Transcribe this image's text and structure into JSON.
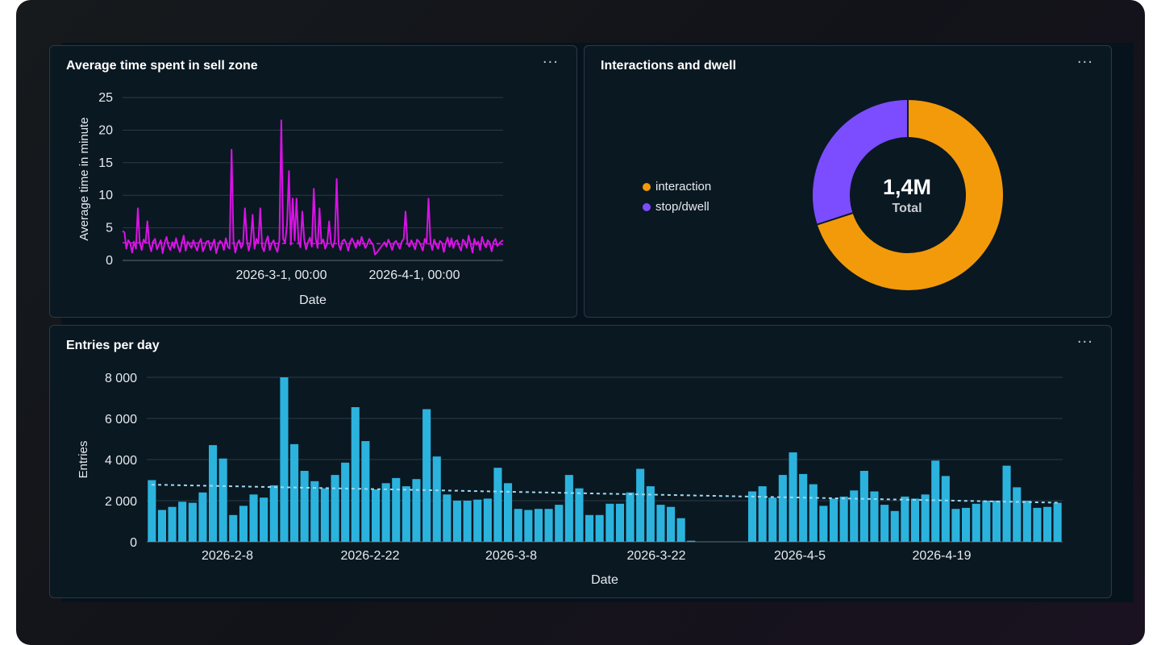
{
  "panels": {
    "sell_zone": {
      "title": "Average time spent in sell zone",
      "menu": "···"
    },
    "interactions": {
      "title": "Interactions and dwell",
      "menu": "···",
      "center_value": "1,4M",
      "center_label": "Total"
    },
    "entries": {
      "title": "Entries per day",
      "menu": "···"
    }
  },
  "colors": {
    "magenta": "#d912e6",
    "orange": "#f39a0a",
    "purple": "#7b4dff",
    "bar": "#2bb3de",
    "trend": "#9fd8ee"
  },
  "chart_data": [
    {
      "type": "line",
      "xlabel": "Date",
      "ylabel": "Average time in minute",
      "ylim": [
        0,
        25
      ],
      "yticks": [
        "0",
        "5",
        "10",
        "15",
        "20",
        "25"
      ],
      "xtick_labels": [
        "2026-3-1, 00:00",
        "2026-4-1, 00:00"
      ],
      "series": [
        {
          "values": [
            4.5,
            4.3,
            1.8,
            3.1,
            2.6,
            1.2,
            2.9,
            1.8,
            8.0,
            2.8,
            1.6,
            3.2,
            2.7,
            6.0,
            2.5,
            1.4,
            2.9,
            3.3,
            1.7,
            2.4,
            3.1,
            1.1,
            2.7,
            3.6,
            2.2,
            1.6,
            2.8,
            1.9,
            3.4,
            2.1,
            1.3,
            2.6,
            3.8,
            1.5,
            2.9,
            2.4,
            1.9,
            3.1,
            2.2,
            1.5,
            2.7,
            3.3,
            1.4,
            2.1,
            2.9,
            3.0,
            1.6,
            2.4,
            3.2,
            1.1,
            2.3,
            3.0,
            2.7,
            1.6,
            3.4,
            2.1,
            1.8,
            17.0,
            3.0,
            1.2,
            2.6,
            3.1,
            1.9,
            2.5,
            8.0,
            3.2,
            1.5,
            2.8,
            7.0,
            1.8,
            3.3,
            2.6,
            8.0,
            2.1,
            1.4,
            2.9,
            3.7,
            1.6,
            2.6,
            3.1,
            2.0,
            1.3,
            3.1,
            21.5,
            3.3,
            2.7,
            5.5,
            13.7,
            2.4,
            9.5,
            3.1,
            9.5,
            3.0,
            2.0,
            7.5,
            3.2,
            1.7,
            2.8,
            3.5,
            2.1,
            11.0,
            3.4,
            1.9,
            8.0,
            2.6,
            3.2,
            1.8,
            2.6,
            6.0,
            2.7,
            2.0,
            3.1,
            12.5,
            2.5,
            1.6,
            3.0,
            3.2,
            2.6,
            1.5,
            2.8,
            3.4,
            2.7,
            1.9,
            3.1,
            2.3,
            3.6,
            2.7,
            1.9,
            2.5,
            3.3,
            2.8,
            2.4,
            0.9,
            1.2,
            1.6,
            2.0,
            2.4,
            2.8,
            2.1,
            3.2,
            2.5,
            1.6,
            2.7,
            3.0,
            2.4,
            1.8,
            2.9,
            3.3,
            7.5,
            2.6,
            2.1,
            3.1,
            2.4,
            1.7,
            3.2,
            2.9,
            2.3,
            1.5,
            3.3,
            2.6,
            9.5,
            2.8,
            1.6,
            3.2,
            2.4,
            1.8,
            3.0,
            2.7,
            1.3,
            2.6,
            3.5,
            2.1,
            3.4,
            1.9,
            2.9,
            3.1,
            2.2,
            1.5,
            3.2,
            2.8,
            1.9,
            3.8,
            2.5,
            1.2,
            3.3,
            2.4,
            2.9,
            1.6,
            3.6,
            2.6,
            2.0,
            3.1,
            2.7,
            1.4,
            2.8,
            3.3,
            2.2,
            2.6,
            2.9,
            3.1
          ]
        }
      ],
      "trend": [
        2.7,
        2.5
      ]
    },
    {
      "type": "pie",
      "legend_position": "left",
      "slices": [
        {
          "label": "interaction",
          "value": 0.7
        },
        {
          "label": "stop/dwell",
          "value": 0.3
        }
      ]
    },
    {
      "type": "bar",
      "xlabel": "Date",
      "ylabel": "Entries",
      "ylim": [
        0,
        8000
      ],
      "yticks": [
        "0",
        "2 000",
        "4 000",
        "6 000",
        "8 000"
      ],
      "xtick_labels": [
        "2026-2-8",
        "2026-2-22",
        "2026-3-8",
        "2026-3-22",
        "2026-4-5",
        "2026-4-19"
      ],
      "values": [
        3000,
        1550,
        1700,
        1950,
        1900,
        2400,
        4700,
        4050,
        1300,
        1750,
        2300,
        2150,
        2750,
        8000,
        4750,
        3450,
        2950,
        2600,
        3250,
        3850,
        6550,
        4900,
        2550,
        2850,
        3100,
        2700,
        3050,
        6450,
        4150,
        2300,
        2000,
        2000,
        2050,
        2100,
        3600,
        2850,
        1600,
        1550,
        1600,
        1600,
        1800,
        3250,
        2600,
        1300,
        1300,
        1850,
        1850,
        2400,
        3550,
        2700,
        1800,
        1700,
        1150,
        50,
        0,
        0,
        0,
        0,
        0,
        2450,
        2700,
        2150,
        3250,
        4350,
        3300,
        2800,
        1750,
        2100,
        2200,
        2500,
        3450,
        2450,
        1800,
        1500,
        2200,
        2100,
        2300,
        3950,
        3200,
        1600,
        1650,
        1850,
        2000,
        2000,
        3700,
        2650,
        2000,
        1650,
        1700,
        1900
      ],
      "trend": [
        2780,
        1900
      ]
    }
  ]
}
